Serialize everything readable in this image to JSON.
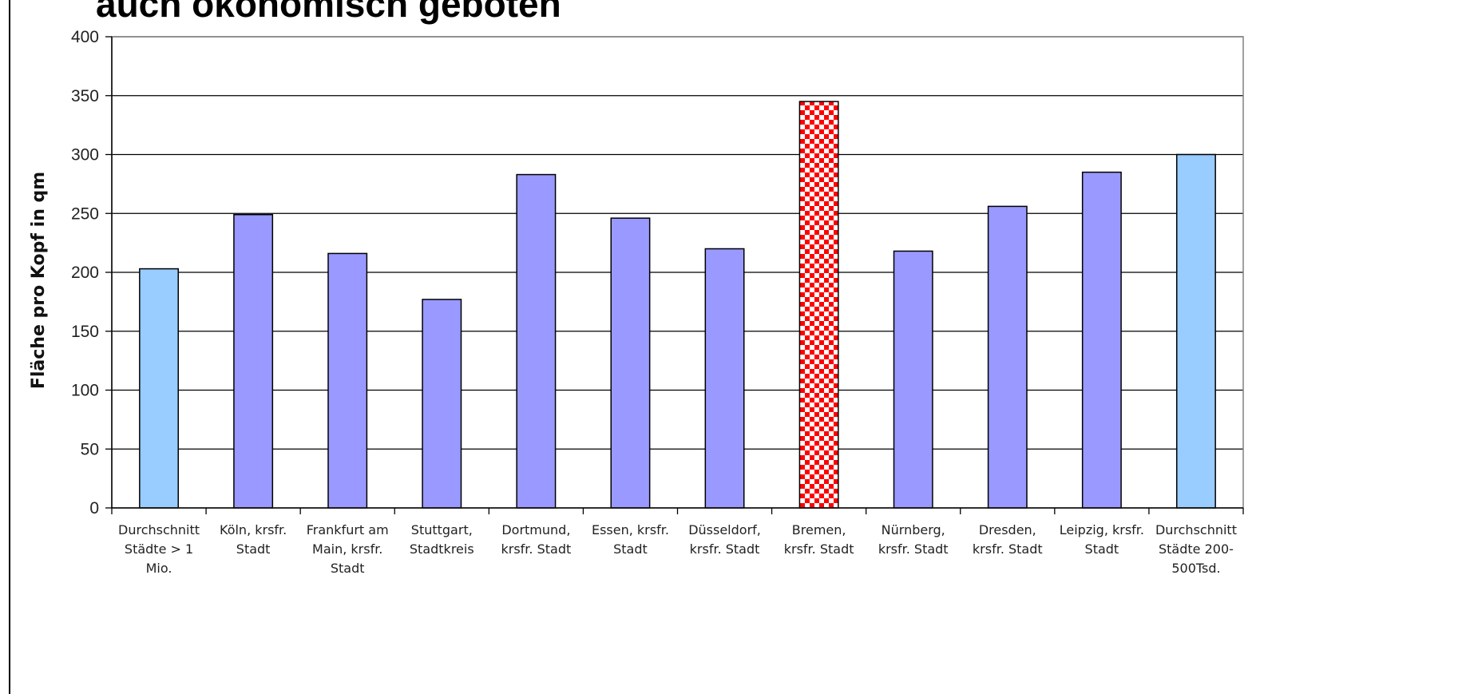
{
  "slide": {
    "title": "auch ökonomisch geboten"
  },
  "chart_data": {
    "type": "bar",
    "title": "",
    "xlabel": "",
    "ylabel": "Fläche pro Kopf in qm",
    "ylim": [
      0,
      400
    ],
    "yticks": [
      0,
      50,
      100,
      150,
      200,
      250,
      300,
      350,
      400
    ],
    "grid": true,
    "legend": "none",
    "categories": [
      [
        "Durchschnitt",
        "Städte > 1",
        "Mio."
      ],
      [
        "Köln, krsfr.",
        "Stadt"
      ],
      [
        "Frankfurt am",
        "Main, krsfr.",
        "Stadt"
      ],
      [
        "Stuttgart,",
        "Stadtkreis"
      ],
      [
        "Dortmund,",
        "krsfr. Stadt"
      ],
      [
        "Essen, krsfr.",
        "Stadt"
      ],
      [
        "Düsseldorf,",
        "krsfr. Stadt"
      ],
      [
        "Bremen,",
        "krsfr. Stadt"
      ],
      [
        "Nürnberg,",
        "krsfr. Stadt"
      ],
      [
        "Dresden,",
        "krsfr. Stadt"
      ],
      [
        "Leipzig, krsfr.",
        "Stadt"
      ],
      [
        "Durchschnitt",
        "Städte 200-",
        "500Tsd."
      ]
    ],
    "values": [
      203,
      249,
      216,
      177,
      283,
      246,
      220,
      345,
      218,
      256,
      285,
      300
    ],
    "bar_styles": [
      "average",
      "city",
      "city",
      "city",
      "city",
      "city",
      "city",
      "highlight",
      "city",
      "city",
      "city",
      "average"
    ],
    "colors": {
      "average": "#99CCFF",
      "city": "#9999FF",
      "highlight": "#FF0000",
      "highlight_pattern": "#FFFFFF",
      "outline": "#000000",
      "grid": "#000000"
    }
  }
}
